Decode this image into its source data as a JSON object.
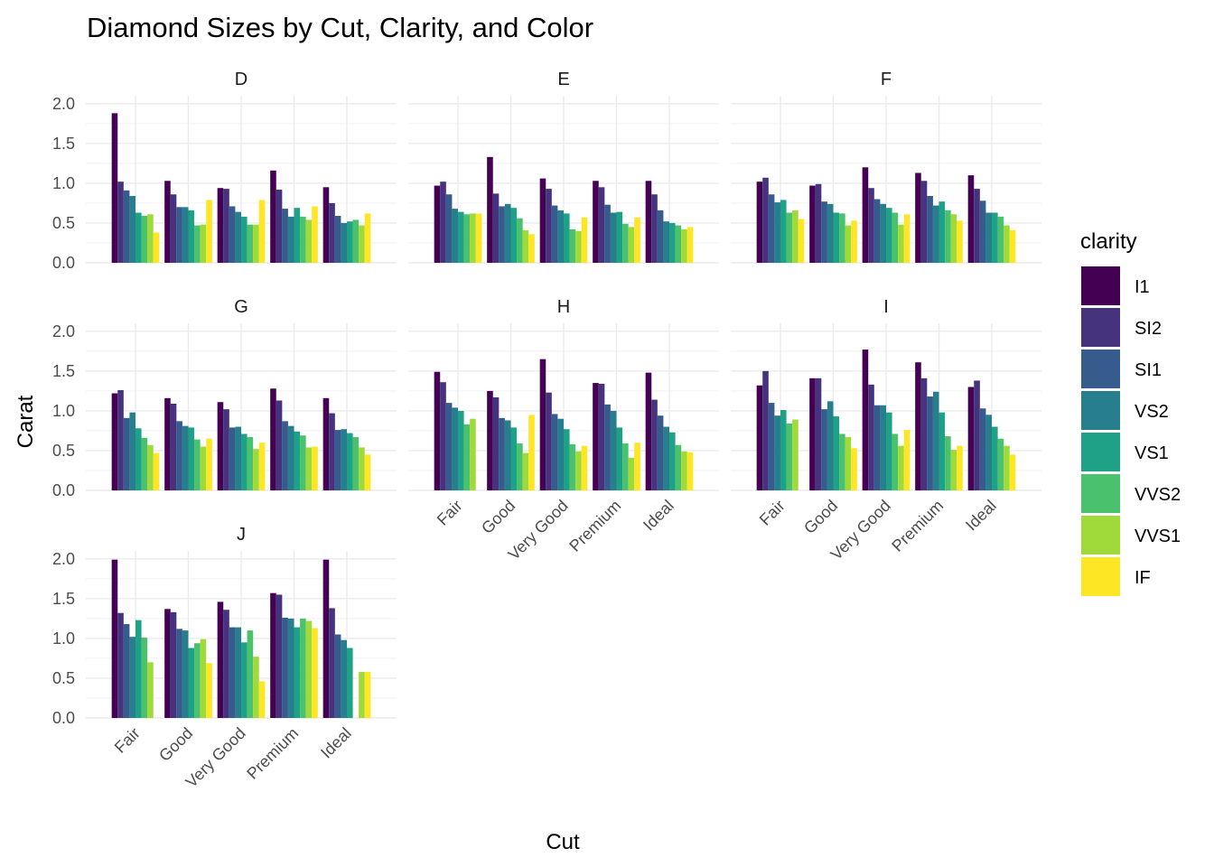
{
  "chart_data": {
    "type": "bar",
    "title": "Diamond Sizes by Cut, Clarity, and Color",
    "xlabel": "Cut",
    "ylabel": "Carat",
    "ylim": [
      0,
      2.0
    ],
    "y_ticks": [
      "0.0",
      "0.5",
      "1.0",
      "1.5",
      "2.0"
    ],
    "y_tick_values": [
      0,
      0.5,
      1.0,
      1.5,
      2.0
    ],
    "grid": true,
    "categories": [
      "Fair",
      "Good",
      "Very Good",
      "Premium",
      "Ideal"
    ],
    "legend": {
      "title": "clarity",
      "placement": "right",
      "items": [
        "I1",
        "SI2",
        "SI1",
        "VS2",
        "VS1",
        "VVS2",
        "VVS1",
        "IF"
      ],
      "colors": [
        "#440154",
        "#46337e",
        "#365c8d",
        "#277f8e",
        "#1fa187",
        "#4ac16d",
        "#9fda3a",
        "#fde725"
      ]
    },
    "facets": [
      {
        "label": "D",
        "values": [
          [
            1.88,
            1.02,
            0.91,
            0.84,
            0.63,
            0.59,
            0.61,
            0.38
          ],
          [
            1.03,
            0.86,
            0.7,
            0.7,
            0.66,
            0.47,
            0.48,
            0.79
          ],
          [
            0.94,
            0.93,
            0.71,
            0.64,
            0.58,
            0.48,
            0.48,
            0.79
          ],
          [
            1.16,
            0.92,
            0.68,
            0.58,
            0.69,
            0.58,
            0.54,
            0.71
          ],
          [
            0.95,
            0.75,
            0.59,
            0.5,
            0.52,
            0.54,
            0.47,
            0.62
          ]
        ]
      },
      {
        "label": "E",
        "values": [
          [
            0.97,
            1.02,
            0.86,
            0.68,
            0.64,
            0.61,
            0.62,
            0.62
          ],
          [
            1.33,
            0.87,
            0.71,
            0.74,
            0.69,
            0.56,
            0.41,
            0.36
          ],
          [
            1.06,
            0.93,
            0.72,
            0.66,
            0.62,
            0.42,
            0.4,
            0.57
          ],
          [
            1.03,
            0.95,
            0.73,
            0.63,
            0.64,
            0.49,
            0.45,
            0.57
          ],
          [
            1.03,
            0.86,
            0.66,
            0.52,
            0.5,
            0.47,
            0.42,
            0.45
          ]
        ]
      },
      {
        "label": "F",
        "values": [
          [
            1.02,
            1.07,
            0.86,
            0.76,
            0.79,
            0.63,
            0.66,
            0.55
          ],
          [
            0.97,
            0.99,
            0.77,
            0.74,
            0.63,
            0.62,
            0.47,
            0.53
          ],
          [
            1.2,
            0.94,
            0.8,
            0.74,
            0.69,
            0.63,
            0.48,
            0.61
          ],
          [
            1.13,
            1.03,
            0.84,
            0.72,
            0.77,
            0.66,
            0.61,
            0.53
          ],
          [
            1.1,
            0.93,
            0.78,
            0.63,
            0.63,
            0.58,
            0.47,
            0.41
          ]
        ]
      },
      {
        "label": "G",
        "values": [
          [
            1.22,
            1.26,
            0.91,
            0.98,
            0.78,
            0.66,
            0.57,
            0.47
          ],
          [
            1.16,
            1.09,
            0.87,
            0.81,
            0.79,
            0.64,
            0.55,
            0.65
          ],
          [
            1.11,
            1.02,
            0.79,
            0.8,
            0.71,
            0.67,
            0.52,
            0.6
          ],
          [
            1.28,
            1.13,
            0.87,
            0.81,
            0.74,
            0.69,
            0.54,
            0.55
          ],
          [
            1.16,
            0.97,
            0.76,
            0.77,
            0.72,
            0.67,
            0.54,
            0.45
          ]
        ]
      },
      {
        "label": "H",
        "values": [
          [
            1.49,
            1.36,
            1.1,
            1.04,
            1.0,
            0.83,
            0.9,
            0.0
          ],
          [
            1.25,
            1.17,
            0.91,
            0.88,
            0.79,
            0.59,
            0.47,
            0.95
          ],
          [
            1.65,
            1.23,
            0.96,
            0.9,
            0.77,
            0.58,
            0.49,
            0.56
          ],
          [
            1.35,
            1.34,
            1.08,
            1.0,
            0.79,
            0.59,
            0.41,
            0.6
          ],
          [
            1.48,
            1.14,
            0.94,
            0.8,
            0.73,
            0.57,
            0.49,
            0.48
          ]
        ]
      },
      {
        "label": "I",
        "values": [
          [
            1.32,
            1.5,
            1.1,
            0.94,
            1.01,
            0.84,
            0.89,
            0.0
          ],
          [
            1.41,
            1.41,
            1.02,
            1.12,
            0.93,
            0.71,
            0.67,
            0.53
          ],
          [
            1.77,
            1.33,
            1.07,
            1.07,
            0.98,
            0.71,
            0.56,
            0.76
          ],
          [
            1.61,
            1.41,
            1.18,
            1.24,
            0.98,
            0.68,
            0.51,
            0.56
          ],
          [
            1.3,
            1.38,
            1.03,
            0.95,
            0.8,
            0.65,
            0.56,
            0.45
          ]
        ]
      },
      {
        "label": "J",
        "values": [
          [
            1.99,
            1.32,
            1.18,
            1.02,
            1.23,
            1.01,
            0.7,
            0.0
          ],
          [
            1.37,
            1.33,
            1.12,
            1.1,
            0.88,
            0.94,
            0.99,
            0.69
          ],
          [
            1.46,
            1.36,
            1.14,
            1.14,
            0.95,
            1.1,
            0.77,
            0.46
          ],
          [
            1.57,
            1.55,
            1.26,
            1.25,
            1.14,
            1.25,
            1.22,
            1.13
          ],
          [
            1.99,
            1.38,
            1.05,
            0.98,
            0.88,
            0.0,
            0.58,
            0.58
          ]
        ]
      }
    ]
  }
}
